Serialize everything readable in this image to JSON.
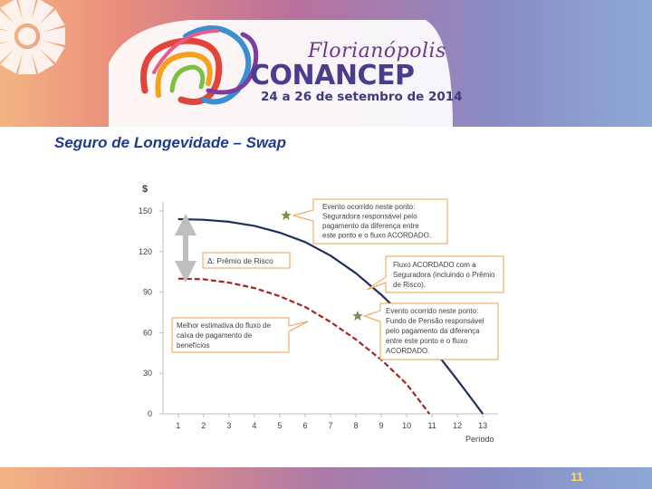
{
  "slide": {
    "title": "Seguro de Longevidade – Swap",
    "page_number": "11"
  },
  "brand": {
    "city": "Florianópolis",
    "name": "CONANCEP",
    "dates": "24 a 26 de setembro de 2014"
  },
  "colors": {
    "title": "#1f3a93",
    "line_agreed": "#1f2f5c",
    "line_estimate": "#a32424",
    "annotation_border": "#e8a04c",
    "star": "#8a8a50",
    "arrow": "#bfbfbf"
  },
  "chart_data": {
    "type": "line",
    "title": "",
    "ylabel": "$",
    "xlabel": "Período",
    "ylim": [
      0,
      150
    ],
    "xlim": [
      0.4,
      13.6
    ],
    "yticks": [
      0,
      30,
      60,
      90,
      120,
      150
    ],
    "xticks": [
      1,
      2,
      3,
      4,
      5,
      6,
      7,
      8,
      9,
      10,
      11,
      12,
      13
    ],
    "series": [
      {
        "name": "Fluxo ACORDADO com a Seguradora",
        "style": "solid",
        "color": "#1f2f5c",
        "points": [
          [
            1,
            144
          ],
          [
            2,
            143.5
          ],
          [
            3,
            142
          ],
          [
            4,
            139
          ],
          [
            5,
            134
          ],
          [
            6,
            127
          ],
          [
            7,
            117
          ],
          [
            8,
            104
          ],
          [
            9,
            88
          ],
          [
            10,
            70
          ],
          [
            11,
            49
          ],
          [
            12,
            25
          ],
          [
            13,
            0
          ]
        ]
      },
      {
        "name": "Melhor estimativa do fluxo de caixa de pagamento de benefícios",
        "style": "dashed",
        "color": "#a32424",
        "points": [
          [
            1,
            100
          ],
          [
            2,
            99.5
          ],
          [
            3,
            97
          ],
          [
            4,
            93
          ],
          [
            5,
            87
          ],
          [
            6,
            79
          ],
          [
            7,
            68
          ],
          [
            8,
            55
          ],
          [
            9,
            40
          ],
          [
            10,
            22
          ],
          [
            10.9,
            0
          ]
        ]
      }
    ],
    "annotations": {
      "premium": "Δ: Prêmio de Risco",
      "event_insurer": "Evento ocorrido neste ponto: Seguradora responsável pelo pagamento da diferença entre este ponto e o fluxo ACORDADO.",
      "agreed_flow": "Fluxo ACORDADO com a Seguradora (incluindo o Prêmio de Risco).",
      "event_fund": "Evento ocorrido neste ponto: Fundo de Pensão responsável pelo pagamento da diferença entre este ponto e o fluxo ACORDADO.",
      "best_estimate": "Melhor estimativa do fluxo de caixa de pagamento de benefícios"
    }
  }
}
